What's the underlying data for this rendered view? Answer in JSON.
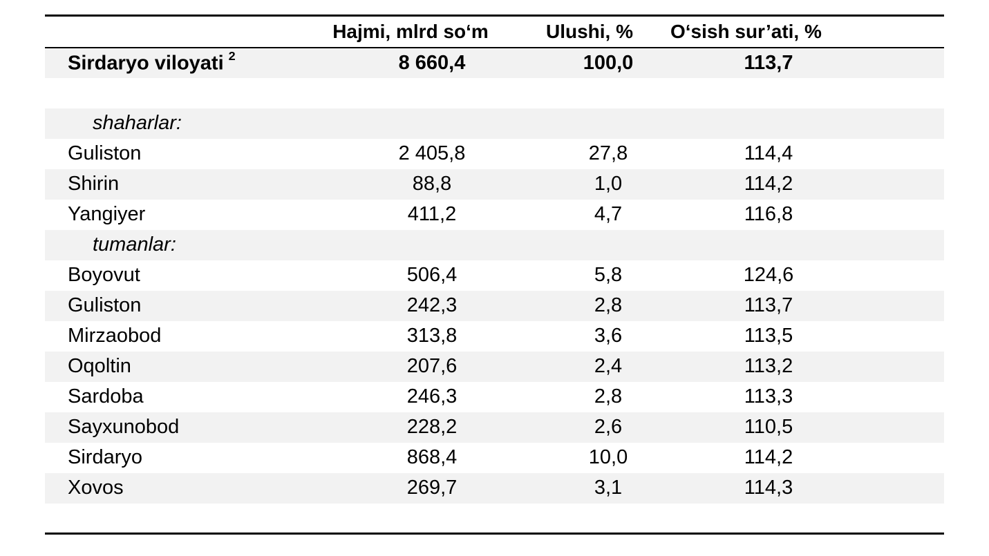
{
  "page": {
    "background": "#ffffff"
  },
  "table": {
    "colors": {
      "stripe": "#f2f2f2",
      "rule": "#000000",
      "text": "#000000"
    },
    "header": {
      "name": "",
      "hajmi": "Hajmi, mlrd so‘m",
      "ulushi": "Ulushi, %",
      "osish": "O‘sish sur’ati, %"
    },
    "rows": [
      {
        "kind": "total",
        "name": "Sirdaryo viloyati",
        "sup": "2",
        "hajmi": "8 660,4",
        "ulushi": "100,0",
        "osish": "113,7"
      },
      {
        "kind": "spacer",
        "name": "",
        "hajmi": "",
        "ulushi": "",
        "osish": ""
      },
      {
        "kind": "section",
        "name": "shaharlar:",
        "hajmi": "",
        "ulushi": "",
        "osish": ""
      },
      {
        "kind": "data",
        "name": "Guliston",
        "hajmi": "2 405,8",
        "ulushi": "27,8",
        "osish": "114,4"
      },
      {
        "kind": "data",
        "name": "Shirin",
        "hajmi": "88,8",
        "ulushi": "1,0",
        "osish": "114,2"
      },
      {
        "kind": "data",
        "name": "Yangiyer",
        "hajmi": "411,2",
        "ulushi": "4,7",
        "osish": "116,8"
      },
      {
        "kind": "section",
        "name": "tumanlar:",
        "hajmi": "",
        "ulushi": "",
        "osish": ""
      },
      {
        "kind": "data",
        "name": "Boyovut",
        "hajmi": "506,4",
        "ulushi": "5,8",
        "osish": "124,6"
      },
      {
        "kind": "data",
        "name": "Guliston",
        "hajmi": "242,3",
        "ulushi": "2,8",
        "osish": "113,7"
      },
      {
        "kind": "data",
        "name": "Mirzaobod",
        "hajmi": "313,8",
        "ulushi": "3,6",
        "osish": "113,5"
      },
      {
        "kind": "data",
        "name": "Oqoltin",
        "hajmi": "207,6",
        "ulushi": "2,4",
        "osish": "113,2"
      },
      {
        "kind": "data",
        "name": "Sardoba",
        "hajmi": "246,3",
        "ulushi": "2,8",
        "osish": "113,3"
      },
      {
        "kind": "data",
        "name": "Sayxunobod",
        "hajmi": "228,2",
        "ulushi": "2,6",
        "osish": "110,5"
      },
      {
        "kind": "data",
        "name": "Sirdaryo",
        "hajmi": "868,4",
        "ulushi": "10,0",
        "osish": "114,2"
      },
      {
        "kind": "data",
        "name": "Xovos",
        "hajmi": "269,7",
        "ulushi": "3,1",
        "osish": "114,3"
      },
      {
        "kind": "spacer",
        "name": "",
        "hajmi": "",
        "ulushi": "",
        "osish": ""
      }
    ]
  }
}
